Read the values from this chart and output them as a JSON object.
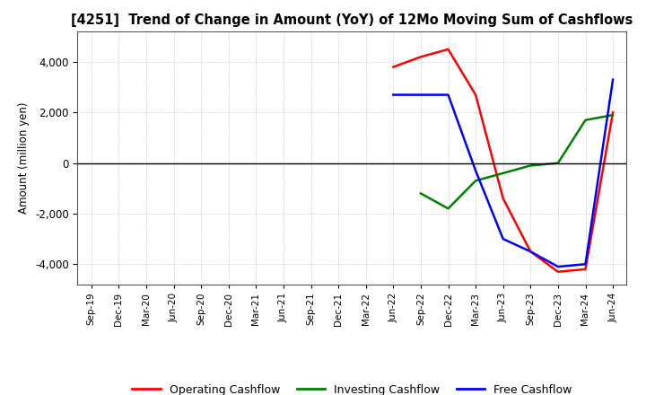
{
  "title": "[4251]  Trend of Change in Amount (YoY) of 12Mo Moving Sum of Cashflows",
  "ylabel": "Amount (million yen)",
  "ylim": [
    -4800,
    5200
  ],
  "yticks": [
    -4000,
    -2000,
    0,
    2000,
    4000
  ],
  "background_color": "#ffffff",
  "grid_color": "#aaaaaa",
  "dates": [
    "Sep-19",
    "Dec-19",
    "Mar-20",
    "Jun-20",
    "Sep-20",
    "Dec-20",
    "Mar-21",
    "Jun-21",
    "Sep-21",
    "Dec-21",
    "Mar-22",
    "Jun-22",
    "Sep-22",
    "Dec-22",
    "Mar-23",
    "Jun-23",
    "Sep-23",
    "Dec-23",
    "Mar-24",
    "Jun-24"
  ],
  "operating_cashflow": [
    null,
    null,
    null,
    null,
    null,
    null,
    null,
    null,
    null,
    null,
    null,
    3800,
    4200,
    4500,
    2700,
    -1400,
    -3500,
    -4300,
    -4200,
    2000
  ],
  "investing_cashflow": [
    null,
    null,
    null,
    null,
    null,
    null,
    null,
    null,
    null,
    null,
    null,
    null,
    -1200,
    -1800,
    -700,
    -400,
    -100,
    0,
    1700,
    1900
  ],
  "free_cashflow": [
    null,
    null,
    null,
    null,
    null,
    null,
    null,
    null,
    null,
    null,
    null,
    2700,
    2700,
    2700,
    -300,
    -3000,
    -3500,
    -4100,
    -4000,
    3300
  ],
  "operating_color": "#ff0000",
  "investing_color": "#008000",
  "free_color": "#0000ff",
  "line_width": 1.8
}
